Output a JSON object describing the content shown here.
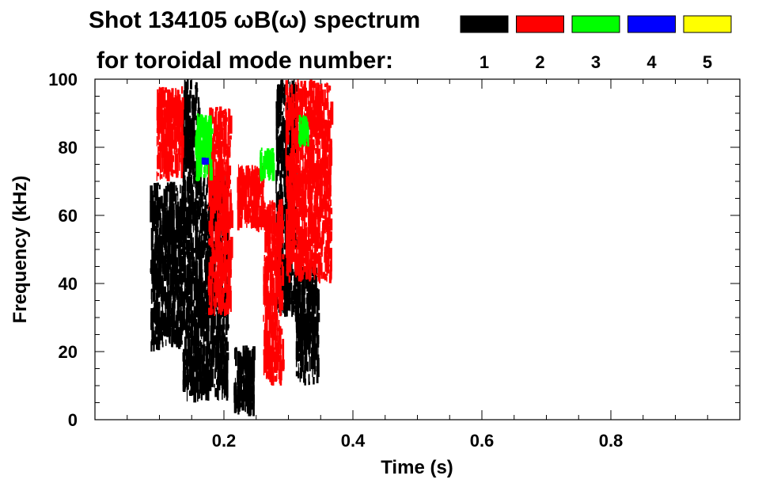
{
  "header": {
    "title_line1": "Shot 134105 ωB(ω) spectrum",
    "title_line2": "for toroidal mode number:"
  },
  "legend": [
    {
      "label": "1",
      "color": "#000000"
    },
    {
      "label": "2",
      "color": "#ff0000"
    },
    {
      "label": "3",
      "color": "#00ff00"
    },
    {
      "label": "4",
      "color": "#0000ff"
    },
    {
      "label": "5",
      "color": "#ffff00"
    }
  ],
  "chart_data": {
    "type": "heatmap",
    "title": "Shot 134105 ωB(ω) spectrum",
    "subtitle": "for toroidal mode number:",
    "xlabel": "Time (s)",
    "ylabel": "Frequency (kHz)",
    "xlim": [
      0,
      1.0
    ],
    "ylim": [
      0,
      100
    ],
    "x_ticks": [
      0.2,
      0.4,
      0.6,
      0.8
    ],
    "x_tick_labels": [
      "0.2",
      "0.4",
      "0.6",
      "0.8"
    ],
    "y_ticks": [
      0,
      20,
      40,
      60,
      80,
      100
    ],
    "y_tick_labels": [
      "0",
      "20",
      "40",
      "60",
      "80",
      "100"
    ],
    "grid": false,
    "legend_position": "top-right",
    "series": [
      {
        "name": "1",
        "color": "#000000",
        "regions": [
          {
            "t": [
              0.085,
              0.135
            ],
            "f": [
              20,
              70
            ]
          },
          {
            "t": [
              0.135,
              0.16
            ],
            "f": [
              5,
              100
            ]
          },
          {
            "t": [
              0.16,
              0.205
            ],
            "f": [
              5,
              72
            ]
          },
          {
            "t": [
              0.215,
              0.245
            ],
            "f": [
              1,
              22
            ]
          },
          {
            "t": [
              0.28,
              0.31
            ],
            "f": [
              30,
              100
            ]
          },
          {
            "t": [
              0.31,
              0.345
            ],
            "f": [
              10,
              45
            ]
          }
        ]
      },
      {
        "name": "2",
        "color": "#ff0000",
        "regions": [
          {
            "t": [
              0.095,
              0.135
            ],
            "f": [
              70,
              98
            ]
          },
          {
            "t": [
              0.175,
              0.21
            ],
            "f": [
              30,
              92
            ]
          },
          {
            "t": [
              0.22,
              0.26
            ],
            "f": [
              55,
              75
            ]
          },
          {
            "t": [
              0.26,
              0.29
            ],
            "f": [
              10,
              65
            ]
          },
          {
            "t": [
              0.295,
              0.365
            ],
            "f": [
              40,
              100
            ]
          }
        ]
      },
      {
        "name": "3",
        "color": "#00ff00",
        "regions": [
          {
            "t": [
              0.155,
              0.18
            ],
            "f": [
              70,
              90
            ]
          },
          {
            "t": [
              0.255,
              0.275
            ],
            "f": [
              70,
              80
            ]
          },
          {
            "t": [
              0.315,
              0.33
            ],
            "f": [
              80,
              90
            ]
          }
        ]
      },
      {
        "name": "4",
        "color": "#0000ff",
        "regions": [
          {
            "t": [
              0.165,
              0.172
            ],
            "f": [
              75,
              77
            ]
          }
        ]
      },
      {
        "name": "5",
        "color": "#ffff00",
        "regions": []
      }
    ]
  }
}
